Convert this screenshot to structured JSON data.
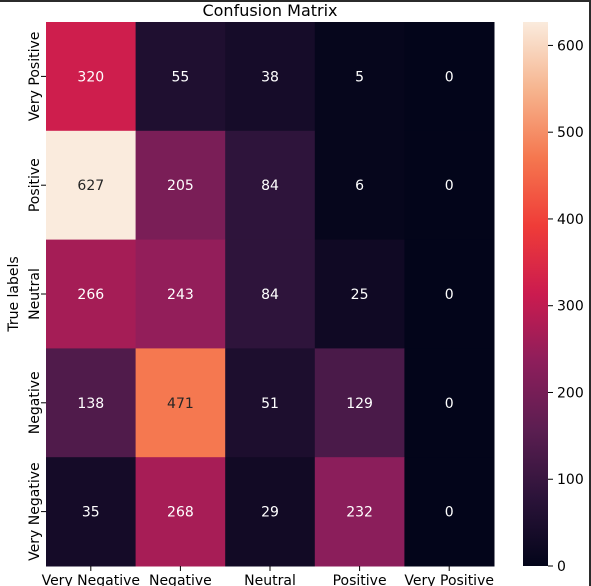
{
  "chart_data": {
    "type": "heatmap",
    "title": "Confusion Matrix",
    "ylabel": "True labels",
    "xlabel": "",
    "x_categories": [
      "Very Negative",
      "Negative",
      "Neutral",
      "Positive",
      "Very Positive"
    ],
    "y_categories": [
      "Very Positive",
      "Positive",
      "Neutral",
      "Negative",
      "Very Negative"
    ],
    "values": [
      [
        320,
        55,
        38,
        5,
        0
      ],
      [
        627,
        205,
        84,
        6,
        0
      ],
      [
        266,
        243,
        84,
        25,
        0
      ],
      [
        138,
        471,
        51,
        129,
        0
      ],
      [
        35,
        268,
        29,
        232,
        0
      ]
    ],
    "colorbar": {
      "min": 0,
      "max": 627,
      "ticks": [
        0,
        100,
        200,
        300,
        400,
        500,
        600
      ]
    },
    "colormap": "rocket",
    "annotations_shown": true,
    "grid": false
  }
}
